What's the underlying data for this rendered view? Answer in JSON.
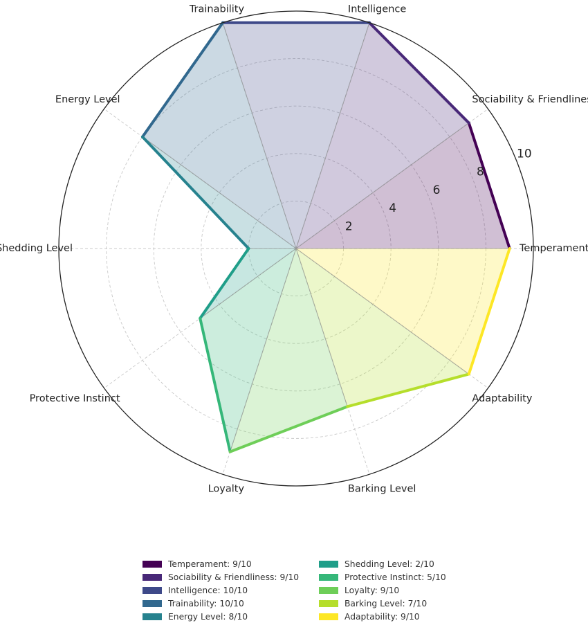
{
  "chart_data": {
    "type": "radar",
    "title": "",
    "rlim": [
      0,
      10
    ],
    "r_ticks": [
      "2",
      "4",
      "6",
      "8",
      "10"
    ],
    "categories": [
      "Temperament",
      "Sociability & Friendliness",
      "Intelligence",
      "Trainability",
      "Energy Level",
      "Shedding Level",
      "Protective Instinct",
      "Loyalty",
      "Barking Level",
      "Adaptability"
    ],
    "values": [
      9,
      9,
      10,
      10,
      8,
      2,
      5,
      9,
      7,
      9
    ],
    "colors": [
      "#440154",
      "#482878",
      "#3e4989",
      "#31688e",
      "#26828e",
      "#1f9e89",
      "#35b779",
      "#6ece58",
      "#b5de2b",
      "#fde725"
    ],
    "legend": {
      "placement": "bottom-center",
      "entries": [
        "Temperament: 9/10",
        "Sociability & Friendliness: 9/10",
        "Intelligence: 10/10",
        "Trainability: 10/10",
        "Energy Level: 8/10",
        "Shedding Level: 2/10",
        "Protective Instinct: 5/10",
        "Loyalty: 9/10",
        "Barking Level: 7/10",
        "Adaptability: 9/10"
      ]
    },
    "grid": true
  }
}
